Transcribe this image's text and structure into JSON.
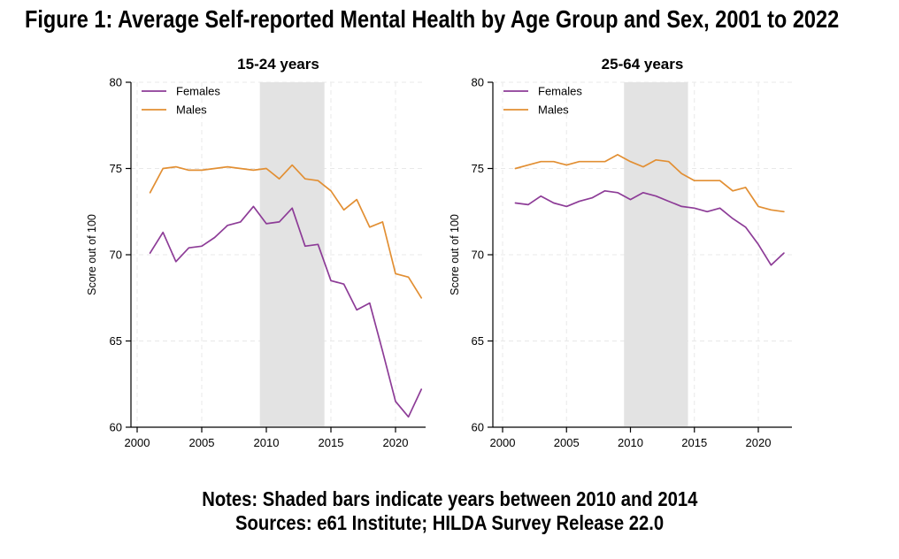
{
  "figure": {
    "title": "Figure 1: Average Self-reported Mental Health by Age Group and Sex, 2001 to 2022",
    "notes_line1": "Notes: Shaded bars indicate years between 2010 and 2014",
    "notes_line2": "Sources: e61 Institute; HILDA Survey Release 22.0"
  },
  "colors": {
    "females": "#8d3c97",
    "males": "#e28f33",
    "shade": "#e3e3e3",
    "grid": "#e8e8e8",
    "axis": "#000000"
  },
  "chart_data": [
    {
      "type": "line",
      "title": "15-24 years",
      "ylabel": "Score out of 100",
      "x": [
        2001,
        2002,
        2003,
        2004,
        2005,
        2006,
        2007,
        2008,
        2009,
        2010,
        2011,
        2012,
        2013,
        2014,
        2015,
        2016,
        2017,
        2018,
        2019,
        2020,
        2021,
        2022
      ],
      "series": [
        {
          "name": "Females",
          "color_key": "females",
          "values": [
            70.1,
            71.3,
            69.6,
            70.4,
            70.5,
            71.0,
            71.7,
            71.9,
            72.8,
            71.8,
            71.9,
            72.7,
            70.5,
            70.6,
            68.5,
            68.3,
            66.8,
            67.2,
            64.4,
            61.5,
            60.6,
            62.2
          ]
        },
        {
          "name": "Males",
          "color_key": "males",
          "values": [
            73.6,
            75.0,
            75.1,
            74.9,
            74.9,
            75.0,
            75.1,
            75.0,
            74.9,
            75.0,
            74.4,
            75.2,
            74.4,
            74.3,
            73.7,
            72.6,
            73.2,
            71.6,
            71.9,
            68.9,
            68.7,
            67.5
          ]
        }
      ],
      "ylim": [
        60,
        80
      ],
      "xticks": [
        2000,
        2005,
        2010,
        2015,
        2020
      ],
      "yticks": [
        60,
        65,
        70,
        75,
        80
      ],
      "shaded_x_range": [
        2009.5,
        2014.5
      ],
      "legend_position": "top-left",
      "grid": true
    },
    {
      "type": "line",
      "title": "25-64 years",
      "ylabel": "Score out of 100",
      "x": [
        2001,
        2002,
        2003,
        2004,
        2005,
        2006,
        2007,
        2008,
        2009,
        2010,
        2011,
        2012,
        2013,
        2014,
        2015,
        2016,
        2017,
        2018,
        2019,
        2020,
        2021,
        2022
      ],
      "series": [
        {
          "name": "Females",
          "color_key": "females",
          "values": [
            73.0,
            72.9,
            73.4,
            73.0,
            72.8,
            73.1,
            73.3,
            73.7,
            73.6,
            73.2,
            73.6,
            73.4,
            73.1,
            72.8,
            72.7,
            72.5,
            72.7,
            72.1,
            71.6,
            70.6,
            69.4,
            70.1
          ]
        },
        {
          "name": "Males",
          "color_key": "males",
          "values": [
            75.0,
            75.2,
            75.4,
            75.4,
            75.2,
            75.4,
            75.4,
            75.4,
            75.8,
            75.4,
            75.1,
            75.5,
            75.4,
            74.7,
            74.3,
            74.3,
            74.3,
            73.7,
            73.9,
            72.8,
            72.6,
            72.5
          ]
        }
      ],
      "ylim": [
        60,
        80
      ],
      "xticks": [
        2000,
        2005,
        2010,
        2015,
        2020
      ],
      "yticks": [
        60,
        65,
        70,
        75,
        80
      ],
      "shaded_x_range": [
        2009.5,
        2014.5
      ],
      "legend_position": "top-left",
      "grid": true
    }
  ]
}
